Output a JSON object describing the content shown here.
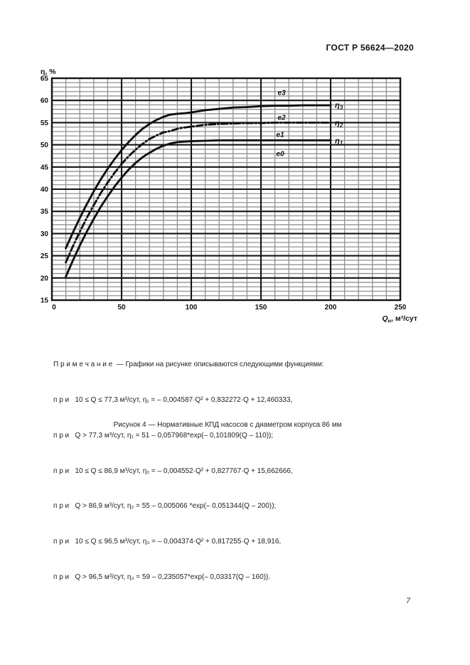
{
  "header": {
    "standard_code": "ГОСТ Р 56624—2020"
  },
  "page_number": "7",
  "caption": "Рисунок 4 — Нормативные КПД насосов с диаметром корпуса 86 мм",
  "note": {
    "lines": [
      "П р и м е ч а н и е  — Графики на рисунке описываются следующими функциями:",
      "п р и   10 ≤ Q ≤ 77,3 м³/сут, η₁ = – 0,004587·Q² + 0,832272·Q + 12,460333,",
      "п р и   Q > 77,3 м³/сут, η₁ = 51 – 0,057968*exp(– 0,101809(Q – 110));",
      "п р и   10 ≤ Q ≤ 86,9 м³/сут, η₂ = – 0,004552·Q² + 0,827767·Q + 15,662666,",
      "п р и   Q > 86,9 м³/сут, η₂ = 55 – 0,005066 *exp(– 0,051344(Q – 200));",
      "п р и   10 ≤ Q ≤ 96,5 м³/сут, η₃ = – 0,004374·Q² + 0,817255·Q + 18,916,",
      "п р и   Q > 96,5 м³/сут, η₃ = 59 – 0,235057*exp(– 0,03317(Q – 160))."
    ]
  },
  "chart_data": {
    "type": "line",
    "title": "Нормативные КПД насосов с диаметром корпуса 86 мм",
    "ylabel": "η, %",
    "xlabel": {
      "base": "Q",
      "sub": "н",
      "rest": ", м³/сут"
    },
    "xlim": [
      0,
      250
    ],
    "ylim": [
      15,
      65
    ],
    "x_major_ticks": [
      0,
      50,
      100,
      150,
      200,
      250
    ],
    "y_major_ticks": [
      15,
      20,
      25,
      30,
      35,
      40,
      45,
      50,
      55,
      60,
      65
    ],
    "x_minor_step": 10,
    "y_minor_step": 1,
    "grid": true,
    "legend_position": "none",
    "x": [
      10,
      15,
      20,
      25,
      30,
      35,
      40,
      45,
      50,
      55,
      60,
      65,
      70,
      75,
      80,
      85,
      90,
      95,
      100,
      110,
      120,
      130,
      140,
      150,
      160,
      170,
      180,
      190,
      200
    ],
    "series": [
      {
        "name": "eta1",
        "label": "η",
        "label_sub": "1",
        "style": "solid",
        "plateau": 51,
        "values": [
          20.3,
          23.9,
          27.3,
          30.4,
          33.3,
          36.0,
          38.4,
          40.6,
          42.6,
          44.4,
          45.9,
          47.2,
          48.2,
          49.1,
          49.8,
          50.3,
          50.6,
          50.7,
          50.8,
          50.9,
          51.0,
          51.0,
          51.0,
          51.0,
          51.0,
          51.0,
          51.0,
          51.0,
          51.0
        ]
      },
      {
        "name": "eta2",
        "label": "η",
        "label_sub": "2",
        "style": "dashdot",
        "plateau": 55,
        "values": [
          23.5,
          27.1,
          30.4,
          33.5,
          36.4,
          39.1,
          41.5,
          43.7,
          45.7,
          47.4,
          48.9,
          50.2,
          51.3,
          52.1,
          52.8,
          53.1,
          53.6,
          53.9,
          54.1,
          54.5,
          54.7,
          54.8,
          54.9,
          54.9,
          55.0,
          55.0,
          55.0,
          55.0,
          55.0
        ]
      },
      {
        "name": "eta3",
        "label": "η",
        "label_sub": "3",
        "style": "solid",
        "plateau": 59,
        "values": [
          26.7,
          30.2,
          33.5,
          36.6,
          39.5,
          42.2,
          44.6,
          46.8,
          48.8,
          50.6,
          52.2,
          53.6,
          54.7,
          55.6,
          56.3,
          56.8,
          57.0,
          57.1,
          57.3,
          57.8,
          58.1,
          58.4,
          58.5,
          58.7,
          58.8,
          58.8,
          58.9,
          58.9,
          58.9
        ]
      }
    ],
    "zone_labels": [
      {
        "text": "е3",
        "q": 162,
        "eta": 61.8
      },
      {
        "text": "е2",
        "q": 162,
        "eta": 56.2
      },
      {
        "text": "е1",
        "q": 161,
        "eta": 52.3
      },
      {
        "text": "е0",
        "q": 161,
        "eta": 48.0
      }
    ],
    "colors": {
      "curve": "#101010",
      "grid_minor": "#909090",
      "grid_major": "#141414",
      "text": "#111111"
    }
  }
}
